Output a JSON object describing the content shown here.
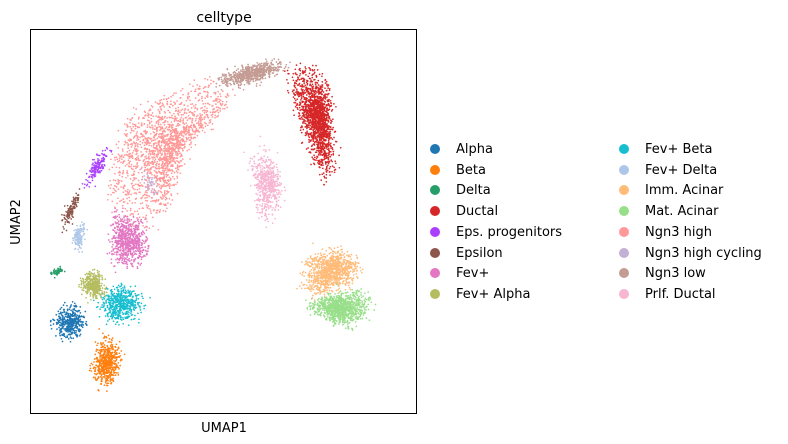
{
  "chart_data": {
    "type": "scatter",
    "title": "celltype",
    "xlabel": "UMAP1",
    "ylabel": "UMAP2",
    "grid": false,
    "legend_placement": "right",
    "legend": [
      {
        "name": "Alpha",
        "color": "#1f77b4"
      },
      {
        "name": "Beta",
        "color": "#ff7f0e"
      },
      {
        "name": "Delta",
        "color": "#279e68"
      },
      {
        "name": "Ductal",
        "color": "#d62728"
      },
      {
        "name": "Eps. progenitors",
        "color": "#aa40fc"
      },
      {
        "name": "Epsilon",
        "color": "#8c564b"
      },
      {
        "name": "Fev+",
        "color": "#e377c2"
      },
      {
        "name": "Fev+ Alpha",
        "color": "#b5bd61"
      },
      {
        "name": "Fev+ Beta",
        "color": "#17becf"
      },
      {
        "name": "Fev+ Delta",
        "color": "#aec7e8"
      },
      {
        "name": "Imm. Acinar",
        "color": "#ffbb78"
      },
      {
        "name": "Mat. Acinar",
        "color": "#98df8a"
      },
      {
        "name": "Ngn3 high",
        "color": "#ff9896"
      },
      {
        "name": "Ngn3 high cycling",
        "color": "#c5b0d5"
      },
      {
        "name": "Ngn3 low",
        "color": "#c49c94"
      },
      {
        "name": "Prlf. Ductal",
        "color": "#f7b6d2"
      }
    ],
    "xlim": [
      0,
      100
    ],
    "ylim": [
      0,
      100
    ],
    "clusters": [
      {
        "name": "Ngn3 high",
        "color": "#ff9896",
        "count": 1800,
        "path": [
          [
            26,
            78
          ],
          [
            36,
            84
          ],
          [
            47,
            87
          ],
          [
            53,
            85
          ],
          [
            50,
            80
          ],
          [
            44,
            75
          ],
          [
            40,
            68
          ],
          [
            36,
            58
          ],
          [
            32,
            48
          ],
          [
            24,
            49
          ],
          [
            20,
            56
          ],
          [
            21,
            64
          ],
          [
            23,
            71
          ]
        ],
        "spread": 1.8
      },
      {
        "name": "Ngn3 low",
        "color": "#c49c94",
        "count": 700,
        "path": [
          [
            47,
            86
          ],
          [
            53,
            87
          ],
          [
            58,
            89
          ],
          [
            63,
            90
          ],
          [
            67,
            91
          ]
        ],
        "spread": 1.9
      },
      {
        "name": "Ductal",
        "color": "#d62728",
        "count": 1700,
        "path": [
          [
            67,
            89
          ],
          [
            71,
            91
          ],
          [
            75,
            87
          ],
          [
            76,
            81
          ],
          [
            77,
            74
          ],
          [
            78,
            67
          ],
          [
            77,
            60
          ]
        ],
        "spread": 2.3
      },
      {
        "name": "Prlf. Ductal",
        "color": "#f7b6d2",
        "count": 600,
        "path": [
          [
            58,
            70
          ],
          [
            62,
            66
          ],
          [
            64,
            60
          ],
          [
            63,
            54
          ],
          [
            61,
            50
          ]
        ],
        "spread": 2.2
      },
      {
        "name": "Imm. Acinar",
        "color": "#ffbb78",
        "count": 1000,
        "path": [
          [
            72,
            40
          ],
          [
            77,
            42
          ],
          [
            82,
            42
          ],
          [
            85,
            39
          ],
          [
            83,
            34
          ],
          [
            77,
            32
          ],
          [
            72,
            31
          ]
        ],
        "spread": 2.0
      },
      {
        "name": "Mat. Acinar",
        "color": "#98df8a",
        "count": 1000,
        "path": [
          [
            72,
            28
          ],
          [
            76,
            26
          ],
          [
            81,
            23
          ],
          [
            86,
            24
          ],
          [
            88,
            30
          ],
          [
            83,
            31
          ],
          [
            78,
            30
          ]
        ],
        "spread": 1.9
      },
      {
        "name": "Fev+",
        "color": "#e377c2",
        "count": 700,
        "path": [
          [
            22,
            52
          ],
          [
            26,
            51
          ],
          [
            30,
            47
          ],
          [
            30,
            41
          ],
          [
            26,
            38
          ],
          [
            21,
            40
          ],
          [
            21,
            46
          ]
        ],
        "spread": 1.8
      },
      {
        "name": "Fev+ Beta",
        "color": "#17becf",
        "count": 550,
        "path": [
          [
            18,
            30
          ],
          [
            22,
            33
          ],
          [
            27,
            32
          ],
          [
            29,
            28
          ],
          [
            25,
            24
          ],
          [
            20,
            24
          ]
        ],
        "spread": 1.8
      },
      {
        "name": "Fev+ Alpha",
        "color": "#b5bd61",
        "count": 380,
        "path": [
          [
            13,
            33
          ],
          [
            15,
            37
          ],
          [
            18,
            36
          ],
          [
            19,
            31
          ],
          [
            16,
            30
          ]
        ],
        "spread": 1.5
      },
      {
        "name": "Alpha",
        "color": "#1f77b4",
        "count": 420,
        "path": [
          [
            6,
            24
          ],
          [
            9,
            28
          ],
          [
            12,
            28
          ],
          [
            14,
            24
          ],
          [
            12,
            20
          ],
          [
            8,
            19
          ]
        ],
        "spread": 1.6
      },
      {
        "name": "Beta",
        "color": "#ff7f0e",
        "count": 550,
        "path": [
          [
            20,
            21
          ],
          [
            23,
            16
          ],
          [
            22,
            10
          ],
          [
            19,
            6
          ],
          [
            17,
            10
          ],
          [
            17,
            15
          ]
        ],
        "spread": 1.6
      },
      {
        "name": "Epsilon",
        "color": "#8c564b",
        "count": 140,
        "path": [
          [
            13,
            59
          ],
          [
            11,
            55
          ],
          [
            9,
            51
          ],
          [
            8,
            46
          ]
        ],
        "spread": 1.0
      },
      {
        "name": "Eps. progenitors",
        "color": "#aa40fc",
        "count": 150,
        "path": [
          [
            20,
            70
          ],
          [
            18,
            66
          ],
          [
            16,
            62
          ],
          [
            14,
            58
          ]
        ],
        "spread": 1.4
      },
      {
        "name": "Fev+ Delta",
        "color": "#aec7e8",
        "count": 130,
        "path": [
          [
            13,
            50
          ],
          [
            12,
            46
          ],
          [
            12,
            42
          ]
        ],
        "spread": 1.2
      },
      {
        "name": "Delta",
        "color": "#279e68",
        "count": 50,
        "path": [
          [
            5,
            36
          ],
          [
            7,
            37
          ],
          [
            9,
            38
          ]
        ],
        "spread": 0.8
      },
      {
        "name": "Ngn3 high cycling",
        "color": "#c5b0d5",
        "count": 40,
        "path": [
          [
            29,
            64
          ],
          [
            31,
            60
          ],
          [
            33,
            56
          ]
        ],
        "spread": 1.4
      }
    ]
  }
}
